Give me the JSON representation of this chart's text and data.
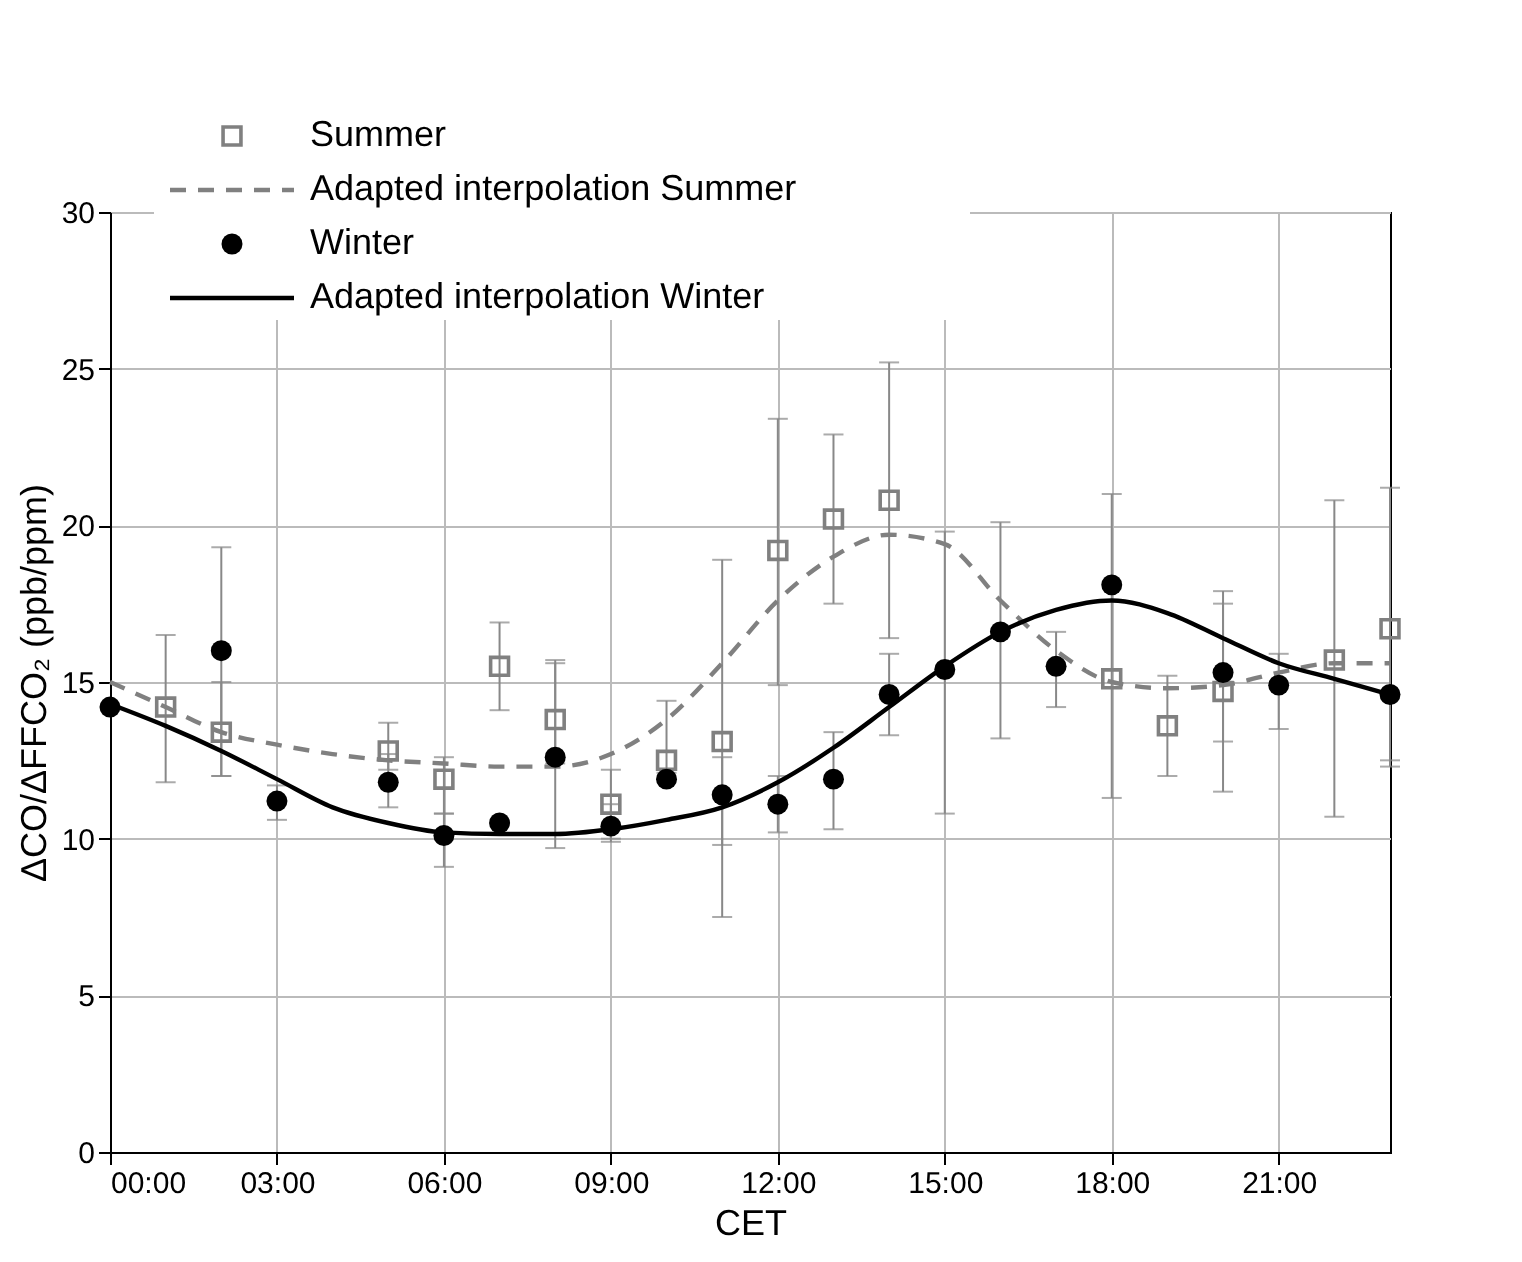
{
  "chart_data": {
    "type": "scatter",
    "xlabel": "CET",
    "ylabel": "ΔCO/ΔFFCO₂ (ppb/ppm)",
    "xlim": [
      0,
      23
    ],
    "ylim": [
      0,
      30
    ],
    "xticks": [
      {
        "value": 0,
        "label": "00:00"
      },
      {
        "value": 3,
        "label": "03:00"
      },
      {
        "value": 6,
        "label": "06:00"
      },
      {
        "value": 9,
        "label": "09:00"
      },
      {
        "value": 12,
        "label": "12:00"
      },
      {
        "value": 15,
        "label": "15:00"
      },
      {
        "value": 18,
        "label": "18:00"
      },
      {
        "value": 21,
        "label": "21:00"
      }
    ],
    "yticks": [
      0,
      5,
      10,
      15,
      20,
      25,
      30
    ],
    "grid": true,
    "legend": "top left",
    "series": [
      {
        "name": "Summer",
        "marker": "square",
        "color": "#808080",
        "x": [
          1,
          2,
          5,
          6,
          7,
          8,
          9,
          10,
          11,
          12,
          13,
          14,
          18,
          19,
          20,
          22,
          23
        ],
        "values": [
          14.2,
          13.4,
          12.8,
          11.9,
          15.5,
          13.8,
          11.1,
          12.5,
          13.1,
          19.2,
          20.2,
          20.8,
          15.1,
          13.6,
          14.7,
          15.7,
          16.7
        ],
        "errors": [
          [
            11.8,
            16.5
          ],
          [
            12.0,
            15.0
          ],
          [
            12.2,
            13.7
          ],
          [
            10.8,
            12.6
          ],
          [
            14.1,
            16.9
          ],
          [
            12.4,
            15.7
          ],
          [
            10.0,
            12.2
          ],
          [
            12.1,
            14.4
          ],
          [
            7.5,
            18.9
          ],
          [
            14.9,
            23.4
          ],
          [
            17.5,
            22.9
          ],
          [
            16.4,
            25.2
          ],
          null,
          [
            12.0,
            15.2
          ],
          [
            11.5,
            17.9
          ],
          [
            10.7,
            20.8
          ],
          [
            12.3,
            21.2
          ]
        ]
      },
      {
        "name": "Adapted interpolation Summer",
        "type": "line",
        "line_style": "dashed",
        "marker": "none",
        "color": "#808080",
        "x": [
          0,
          1,
          2,
          3,
          4,
          5,
          6,
          7,
          8,
          9,
          10,
          11,
          12,
          13,
          14,
          15,
          16,
          17,
          18,
          19,
          20,
          21,
          22,
          23
        ],
        "values": [
          15.0,
          14.2,
          13.4,
          13.0,
          12.7,
          12.5,
          12.4,
          12.3,
          12.3,
          12.7,
          13.8,
          15.6,
          17.6,
          19.0,
          19.7,
          19.4,
          17.6,
          16.0,
          15.0,
          14.8,
          14.9,
          15.3,
          15.6,
          15.6
        ]
      },
      {
        "name": "Winter",
        "marker": "circle",
        "color": "#000000",
        "x": [
          0,
          2,
          3,
          5,
          6,
          7,
          8,
          9,
          10,
          11,
          12,
          13,
          14,
          15,
          16,
          17,
          18,
          20,
          21,
          23
        ],
        "values": [
          14.2,
          16.0,
          11.2,
          11.8,
          10.1,
          10.5,
          12.6,
          10.4,
          11.9,
          11.4,
          11.1,
          11.9,
          14.6,
          15.4,
          16.6,
          15.5,
          18.1,
          15.3,
          14.9,
          14.6
        ],
        "errors": [
          null,
          [
            12.0,
            19.3
          ],
          [
            10.6,
            11.7
          ],
          [
            11.0,
            12.7
          ],
          [
            9.1,
            10.8
          ],
          null,
          [
            9.7,
            15.6
          ],
          [
            9.9,
            11.1
          ],
          null,
          [
            9.8,
            12.6
          ],
          [
            10.2,
            12.0
          ],
          [
            10.3,
            13.4
          ],
          [
            13.3,
            15.9
          ],
          [
            10.8,
            19.8
          ],
          [
            13.2,
            20.1
          ],
          [
            14.2,
            16.6
          ],
          [
            11.3,
            21.0
          ],
          [
            13.1,
            17.5
          ],
          [
            13.5,
            15.9
          ],
          [
            12.5,
            17.0
          ]
        ]
      },
      {
        "name": "Adapted interpolation Winter",
        "type": "line",
        "line_style": "solid",
        "marker": "none",
        "color": "#000000",
        "x": [
          0,
          1,
          2,
          3,
          4,
          5,
          6,
          7,
          8,
          9,
          10,
          11,
          12,
          13,
          14,
          15,
          16,
          17,
          18,
          19,
          20,
          21,
          22,
          23
        ],
        "values": [
          14.3,
          13.6,
          12.8,
          11.9,
          11.0,
          10.5,
          10.2,
          10.15,
          10.15,
          10.3,
          10.6,
          11.0,
          11.8,
          12.9,
          14.2,
          15.5,
          16.6,
          17.3,
          17.6,
          17.2,
          16.4,
          15.6,
          15.1,
          14.6
        ]
      }
    ]
  }
}
